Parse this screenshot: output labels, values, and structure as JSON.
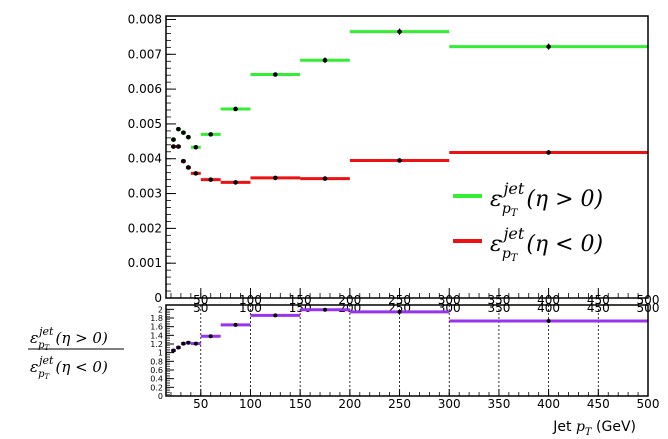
{
  "chart_data": [
    {
      "type": "scatter",
      "panel": "main",
      "xlim": [
        15,
        500
      ],
      "ylim": [
        0,
        0.0081
      ],
      "y_ticks": [
        "0",
        "0.001",
        "0.002",
        "0.003",
        "0.004",
        "0.005",
        "0.006",
        "0.007",
        "0.008"
      ],
      "x_ticks": [
        "50",
        "100",
        "150",
        "200",
        "250",
        "300",
        "350",
        "400",
        "450",
        "500"
      ],
      "legend_placement": "bottom-right",
      "series": [
        {
          "legend_parts": {
            "sym": "ε",
            "sub": "p",
            "subsub": "T",
            "sup": "jet",
            "cond": "(η > 0)"
          },
          "color": "#33ee33",
          "points": [
            {
              "x": 22.5,
              "xlo": 20,
              "xhi": 25,
              "y": 0.00455,
              "err": 6e-05
            },
            {
              "x": 27.5,
              "xlo": 25,
              "xhi": 30,
              "y": 0.00485,
              "err": 6e-05
            },
            {
              "x": 32.5,
              "xlo": 30,
              "xhi": 35,
              "y": 0.00475,
              "err": 6e-05
            },
            {
              "x": 37.5,
              "xlo": 35,
              "xhi": 40,
              "y": 0.00462,
              "err": 5e-05
            },
            {
              "x": 45,
              "xlo": 40,
              "xhi": 50,
              "y": 0.00433,
              "err": 4e-05
            },
            {
              "x": 60,
              "xlo": 50,
              "xhi": 70,
              "y": 0.0047,
              "err": 4e-05
            },
            {
              "x": 85,
              "xlo": 70,
              "xhi": 100,
              "y": 0.00543,
              "err": 4e-05
            },
            {
              "x": 125,
              "xlo": 100,
              "xhi": 150,
              "y": 0.00642,
              "err": 5e-05
            },
            {
              "x": 175,
              "xlo": 150,
              "xhi": 200,
              "y": 0.00683,
              "err": 8e-05
            },
            {
              "x": 250,
              "xlo": 200,
              "xhi": 300,
              "y": 0.00765,
              "err": 9e-05
            },
            {
              "x": 400,
              "xlo": 300,
              "xhi": 500,
              "y": 0.00722,
              "err": 9e-05
            }
          ]
        },
        {
          "legend_parts": {
            "sym": "ε",
            "sub": "p",
            "subsub": "T",
            "sup": "jet",
            "cond": "(η < 0)"
          },
          "color": "#ee1111",
          "points": [
            {
              "x": 22.5,
              "xlo": 20,
              "xhi": 25,
              "y": 0.00435,
              "err": 6e-05
            },
            {
              "x": 27.5,
              "xlo": 25,
              "xhi": 30,
              "y": 0.00435,
              "err": 6e-05
            },
            {
              "x": 32.5,
              "xlo": 30,
              "xhi": 35,
              "y": 0.00393,
              "err": 5e-05
            },
            {
              "x": 37.5,
              "xlo": 35,
              "xhi": 40,
              "y": 0.00375,
              "err": 5e-05
            },
            {
              "x": 45,
              "xlo": 40,
              "xhi": 50,
              "y": 0.00358,
              "err": 4e-05
            },
            {
              "x": 60,
              "xlo": 50,
              "xhi": 70,
              "y": 0.0034,
              "err": 3e-05
            },
            {
              "x": 85,
              "xlo": 70,
              "xhi": 100,
              "y": 0.00332,
              "err": 3e-05
            },
            {
              "x": 125,
              "xlo": 100,
              "xhi": 150,
              "y": 0.00345,
              "err": 3e-05
            },
            {
              "x": 175,
              "xlo": 150,
              "xhi": 200,
              "y": 0.00343,
              "err": 4e-05
            },
            {
              "x": 250,
              "xlo": 200,
              "xhi": 300,
              "y": 0.00395,
              "err": 5e-05
            },
            {
              "x": 400,
              "xlo": 300,
              "xhi": 500,
              "y": 0.00418,
              "err": 6e-05
            }
          ]
        }
      ]
    },
    {
      "type": "scatter",
      "panel": "ratio",
      "xlim": [
        15,
        500
      ],
      "ylim": [
        0,
        2.1
      ],
      "y_ticks": [
        "0",
        "0.2",
        "0.4",
        "0.6",
        "0.8",
        "1",
        "1.2",
        "1.4",
        "1.6",
        "1.8",
        "2"
      ],
      "x_ticks": [
        "50",
        "100",
        "150",
        "200",
        "250",
        "300",
        "350",
        "400",
        "450",
        "500"
      ],
      "grid_x": true,
      "ylabel_parts": {
        "num": {
          "sym": "ε",
          "sub": "p",
          "subsub": "T",
          "sup": "jet",
          "cond": "(η > 0)"
        },
        "den": {
          "sym": "ε",
          "sub": "p",
          "subsub": "T",
          "sup": "jet",
          "cond": "(η < 0)"
        }
      },
      "xlabel_parts": {
        "pre": "Jet ",
        "sym": "p",
        "sub": "T",
        "post": " (GeV)"
      },
      "series": [
        {
          "color": "#9933ee",
          "points": [
            {
              "x": 22.5,
              "xlo": 20,
              "xhi": 25,
              "y": 1.05
            },
            {
              "x": 27.5,
              "xlo": 25,
              "xhi": 30,
              "y": 1.12
            },
            {
              "x": 32.5,
              "xlo": 30,
              "xhi": 35,
              "y": 1.21
            },
            {
              "x": 37.5,
              "xlo": 35,
              "xhi": 40,
              "y": 1.23
            },
            {
              "x": 45,
              "xlo": 40,
              "xhi": 50,
              "y": 1.21
            },
            {
              "x": 60,
              "xlo": 50,
              "xhi": 70,
              "y": 1.38
            },
            {
              "x": 85,
              "xlo": 70,
              "xhi": 100,
              "y": 1.64
            },
            {
              "x": 125,
              "xlo": 100,
              "xhi": 150,
              "y": 1.86
            },
            {
              "x": 175,
              "xlo": 150,
              "xhi": 200,
              "y": 1.99
            },
            {
              "x": 250,
              "xlo": 200,
              "xhi": 300,
              "y": 1.94
            },
            {
              "x": 400,
              "xlo": 300,
              "xhi": 500,
              "y": 1.73
            }
          ]
        }
      ]
    }
  ]
}
